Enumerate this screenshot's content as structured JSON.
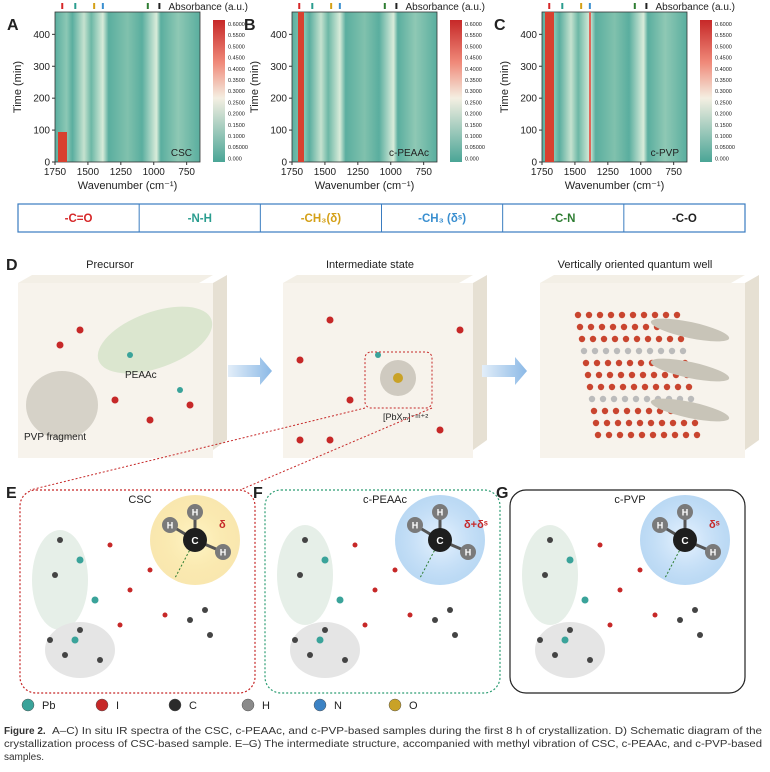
{
  "spectra": {
    "panels": [
      {
        "letter": "A",
        "label": "CSC"
      },
      {
        "letter": "B",
        "label": "c-PEAAc"
      },
      {
        "letter": "C",
        "label": "c-PVP"
      }
    ],
    "ylabel": "Time (min)",
    "xlabel": "Wavenumber (cm⁻¹)",
    "xticks": [
      "1750",
      "1500",
      "1250",
      "1000",
      "750"
    ],
    "yticks": [
      "0",
      "100",
      "200",
      "300",
      "400"
    ],
    "colorbar_title": "Absorbance (a.u.)",
    "colorbar_ticks": [
      "0.6000",
      "0.5500",
      "0.5000",
      "0.4500",
      "0.4000",
      "0.3500",
      "0.3000",
      "0.2500",
      "0.2000",
      "0.1500",
      "0.1000",
      "0.05000",
      "0.000"
    ]
  },
  "bond_legend": [
    {
      "label": "-C=O",
      "color": "#d62728"
    },
    {
      "label": "-N-H",
      "color": "#2a9d8f"
    },
    {
      "label": "-CH₃(δ)",
      "color": "#d4a017"
    },
    {
      "label": "-CH₃ (δˢ)",
      "color": "#3a8fd0"
    },
    {
      "label": "-C-N",
      "color": "#2e7d32"
    },
    {
      "label": "-C-O",
      "color": "#222222"
    }
  ],
  "schematic": {
    "letter": "D",
    "stages": [
      "Precursor",
      "Intermediate state",
      "Vertically oriented quantum well"
    ],
    "labels": {
      "peaac": "PEAAc",
      "pvp": "PVP fragment",
      "pbx": "[PbXₘ]⁻ᵐ⁺²"
    }
  },
  "structures": [
    {
      "letter": "E",
      "title": "CSC",
      "mode": "δ"
    },
    {
      "letter": "F",
      "title": "c-PEAAc",
      "mode": "δ+δˢ"
    },
    {
      "letter": "G",
      "title": "c-PVP",
      "mode": "δˢ"
    }
  ],
  "atom_labels": {
    "h": "H",
    "c": "C"
  },
  "atoms": [
    {
      "label": "Pb",
      "color": "#3aa39a"
    },
    {
      "label": "I",
      "color": "#c62828"
    },
    {
      "label": "C",
      "color": "#2b2b2b"
    },
    {
      "label": "H",
      "color": "#8a8a8a"
    },
    {
      "label": "N",
      "color": "#3b82c4"
    },
    {
      "label": "O",
      "color": "#c9a227"
    }
  ],
  "caption": {
    "label": "Figure 2.",
    "lines": [
      "A–C) In situ IR spectra of the CSC, c-PEAAc, and c-PVP-based samples during the first 8 h of crystallization. D) Schematic diagram of the",
      "crystallization process of CSC-based sample. E–G) The intermediate structure, accompanied with methyl vibration of CSC, c-PEAAc, and c-PVP-based",
      "samples."
    ]
  }
}
